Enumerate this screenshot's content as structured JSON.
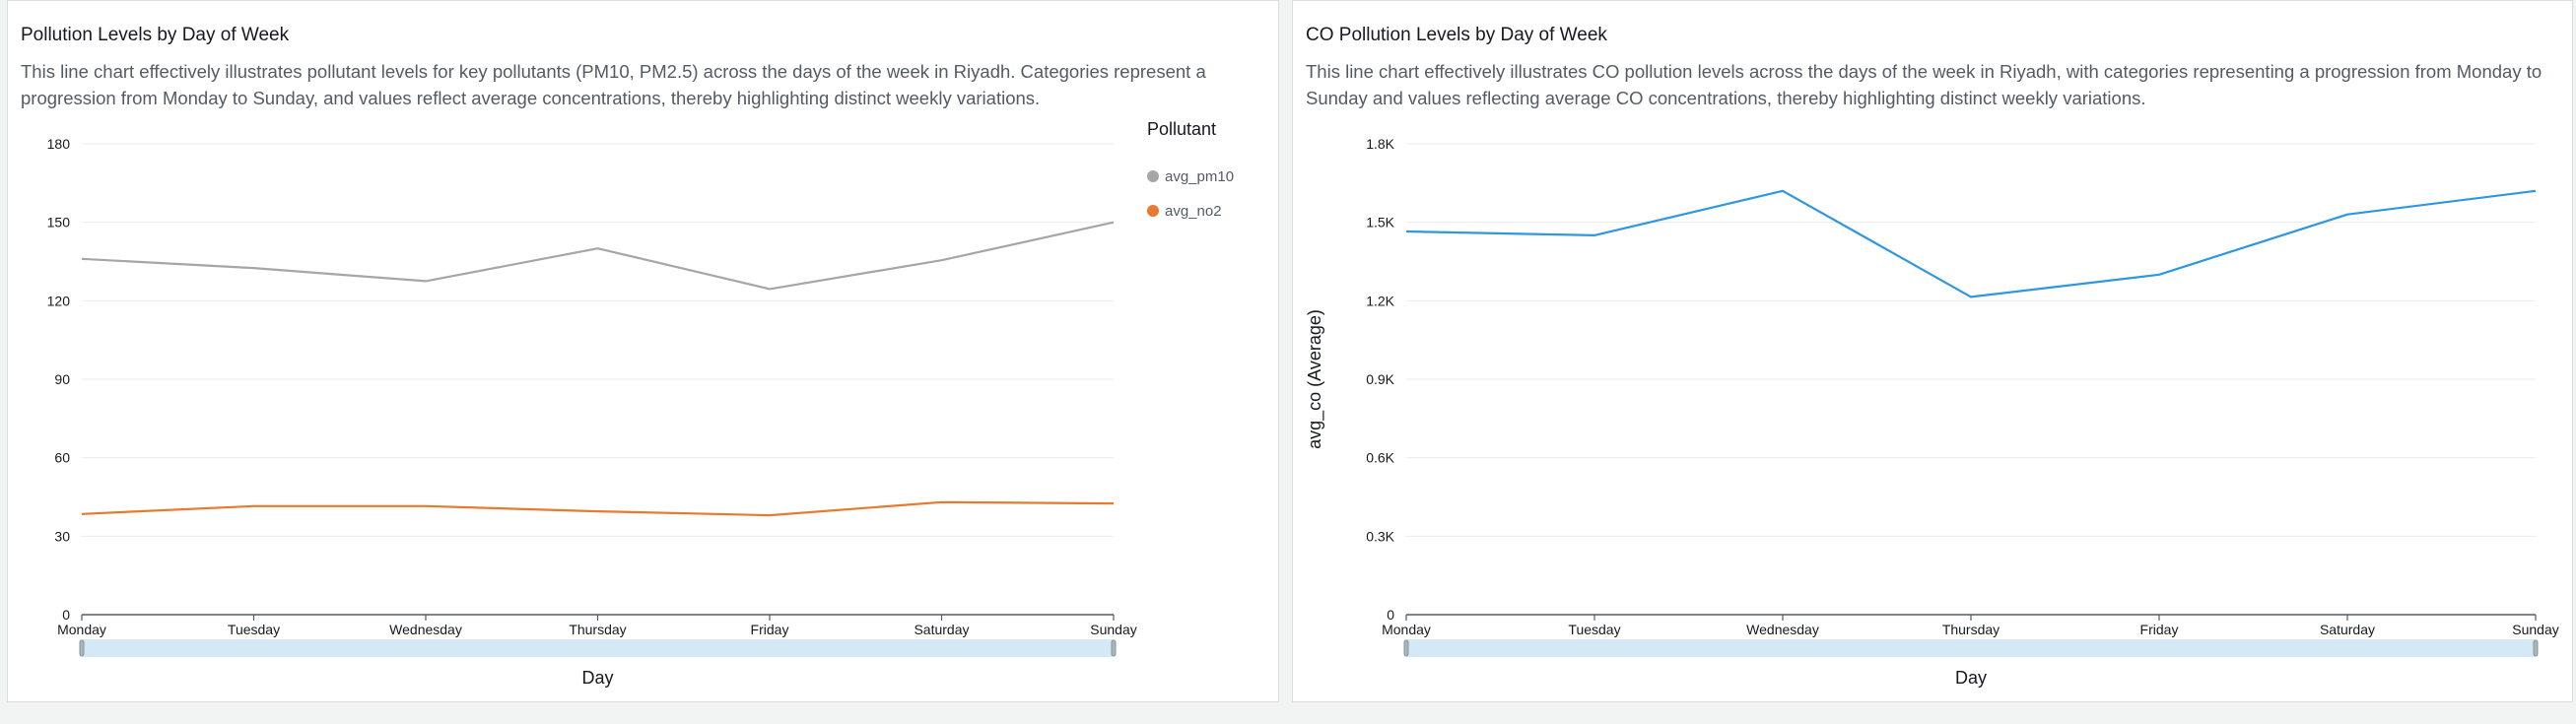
{
  "chart_data": [
    {
      "type": "line",
      "title": "Pollution Levels by Day of Week",
      "subtitle": "This line chart effectively illustrates pollutant levels for key pollutants (PM10, PM2.5) across the days of the week in Riyadh. Categories represent a progression from Monday to Sunday, and values reflect average concentrations, thereby highlighting distinct weekly variations.",
      "categories": [
        "Monday",
        "Tuesday",
        "Wednesday",
        "Thursday",
        "Friday",
        "Saturday",
        "Sunday"
      ],
      "xlabel": "Day",
      "ylabel": "",
      "ylim": [
        0,
        180
      ],
      "yticks": [
        0,
        30,
        60,
        90,
        120,
        150,
        180
      ],
      "ytick_labels": [
        "0",
        "30",
        "60",
        "90",
        "120",
        "150",
        "180"
      ],
      "grid": true,
      "legend_title": "Pollutant",
      "legend_position": "right",
      "series": [
        {
          "name": "avg_pm10",
          "color": "#a6a6a6",
          "values": [
            136,
            132.5,
            127.5,
            140,
            124.5,
            135.5,
            150
          ]
        },
        {
          "name": "avg_no2",
          "color": "#e8792e",
          "values": [
            38.5,
            41.5,
            41.5,
            39.5,
            38,
            43,
            42.5
          ]
        }
      ]
    },
    {
      "type": "line",
      "title": "CO Pollution Levels by Day of Week",
      "subtitle": "This line chart effectively illustrates CO pollution levels across the days of the week in Riyadh, with categories representing a progression from Monday to Sunday and values reflecting average CO concentrations, thereby highlighting distinct weekly variations.",
      "categories": [
        "Monday",
        "Tuesday",
        "Wednesday",
        "Thursday",
        "Friday",
        "Saturday",
        "Sunday"
      ],
      "xlabel": "Day",
      "ylabel": "avg_co (Average)",
      "ylim": [
        0,
        1800
      ],
      "yticks": [
        0,
        300,
        600,
        900,
        1200,
        1500,
        1800
      ],
      "ytick_labels": [
        "0",
        "0.3K",
        "0.6K",
        "0.9K",
        "1.2K",
        "1.5K",
        "1.8K"
      ],
      "grid": true,
      "series": [
        {
          "color": "#2f97e0",
          "values": [
            1465,
            1450,
            1620,
            1215,
            1300,
            1530,
            1620
          ]
        }
      ]
    }
  ]
}
